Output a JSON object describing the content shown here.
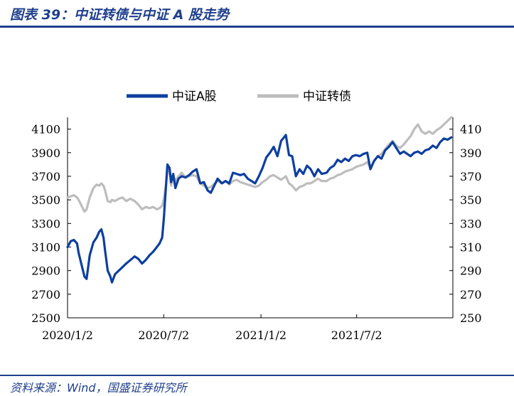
{
  "figure": {
    "title": "图表 39：中证转债与中证 A 股走势",
    "source": "资料来源：Wind，国盛证券研究所"
  },
  "colors": {
    "series_a": "#0d3fa0",
    "series_b": "#bdbdbd",
    "text_blue": "#1f3f8c"
  },
  "chart_data": {
    "type": "line",
    "title": "",
    "xlabel": "",
    "ylabel": "",
    "legend_position": "top",
    "grid": false,
    "x_range": [
      "2020-01-02",
      "2021-12-31"
    ],
    "x_ticks": [
      "2020/1/2",
      "2020/7/2",
      "2021/1/2",
      "2021/7/2"
    ],
    "y_left": {
      "range": [
        2500,
        4200
      ],
      "ticks": [
        "2500",
        "2700",
        "2900",
        "3100",
        "3300",
        "3500",
        "3700",
        "3900",
        "4100"
      ]
    },
    "y_right": {
      "range": [
        250,
        420
      ],
      "ticks": [
        "250",
        "270",
        "290",
        "310",
        "330",
        "350",
        "370",
        "390",
        "410"
      ]
    },
    "series": [
      {
        "name": "中证A股",
        "axis": "left",
        "points": [
          [
            "2020-01-02",
            3100
          ],
          [
            "2020-01-08",
            3150
          ],
          [
            "2020-01-14",
            3160
          ],
          [
            "2020-01-20",
            3130
          ],
          [
            "2020-01-23",
            3050
          ],
          [
            "2020-02-03",
            2850
          ],
          [
            "2020-02-07",
            2830
          ],
          [
            "2020-02-13",
            3030
          ],
          [
            "2020-02-20",
            3140
          ],
          [
            "2020-02-26",
            3180
          ],
          [
            "2020-03-02",
            3230
          ],
          [
            "2020-03-06",
            3250
          ],
          [
            "2020-03-10",
            3180
          ],
          [
            "2020-03-13",
            3070
          ],
          [
            "2020-03-18",
            2900
          ],
          [
            "2020-03-23",
            2850
          ],
          [
            "2020-03-26",
            2800
          ],
          [
            "2020-04-01",
            2870
          ],
          [
            "2020-04-08",
            2900
          ],
          [
            "2020-04-15",
            2930
          ],
          [
            "2020-04-22",
            2960
          ],
          [
            "2020-04-30",
            2990
          ],
          [
            "2020-05-08",
            3020
          ],
          [
            "2020-05-15",
            3000
          ],
          [
            "2020-05-22",
            2960
          ],
          [
            "2020-05-29",
            2990
          ],
          [
            "2020-06-05",
            3030
          ],
          [
            "2020-06-12",
            3060
          ],
          [
            "2020-06-19",
            3100
          ],
          [
            "2020-06-24",
            3130
          ],
          [
            "2020-06-29",
            3180
          ],
          [
            "2020-07-02",
            3330
          ],
          [
            "2020-07-06",
            3600
          ],
          [
            "2020-07-09",
            3800
          ],
          [
            "2020-07-13",
            3770
          ],
          [
            "2020-07-16",
            3650
          ],
          [
            "2020-07-20",
            3720
          ],
          [
            "2020-07-24",
            3600
          ],
          [
            "2020-07-30",
            3680
          ],
          [
            "2020-08-05",
            3700
          ],
          [
            "2020-08-12",
            3690
          ],
          [
            "2020-08-19",
            3710
          ],
          [
            "2020-08-26",
            3740
          ],
          [
            "2020-09-02",
            3760
          ],
          [
            "2020-09-09",
            3640
          ],
          [
            "2020-09-16",
            3650
          ],
          [
            "2020-09-23",
            3580
          ],
          [
            "2020-09-29",
            3560
          ],
          [
            "2020-10-12",
            3680
          ],
          [
            "2020-10-20",
            3640
          ],
          [
            "2020-10-27",
            3660
          ],
          [
            "2020-11-03",
            3640
          ],
          [
            "2020-11-10",
            3730
          ],
          [
            "2020-11-17",
            3720
          ],
          [
            "2020-11-24",
            3710
          ],
          [
            "2020-12-01",
            3720
          ],
          [
            "2020-12-08",
            3680
          ],
          [
            "2020-12-15",
            3660
          ],
          [
            "2020-12-22",
            3640
          ],
          [
            "2020-12-29",
            3700
          ],
          [
            "2021-01-05",
            3770
          ],
          [
            "2021-01-12",
            3860
          ],
          [
            "2021-01-19",
            3900
          ],
          [
            "2021-01-26",
            3950
          ],
          [
            "2021-02-02",
            3870
          ],
          [
            "2021-02-09",
            4000
          ],
          [
            "2021-02-18",
            4050
          ],
          [
            "2021-02-24",
            3880
          ],
          [
            "2021-03-02",
            3870
          ],
          [
            "2021-03-09",
            3700
          ],
          [
            "2021-03-16",
            3760
          ],
          [
            "2021-03-23",
            3720
          ],
          [
            "2021-03-30",
            3790
          ],
          [
            "2021-04-06",
            3760
          ],
          [
            "2021-04-13",
            3700
          ],
          [
            "2021-04-20",
            3760
          ],
          [
            "2021-04-27",
            3720
          ],
          [
            "2021-05-06",
            3730
          ],
          [
            "2021-05-13",
            3770
          ],
          [
            "2021-05-20",
            3790
          ],
          [
            "2021-05-27",
            3840
          ],
          [
            "2021-06-03",
            3820
          ],
          [
            "2021-06-10",
            3850
          ],
          [
            "2021-06-17",
            3830
          ],
          [
            "2021-06-24",
            3870
          ],
          [
            "2021-07-01",
            3880
          ],
          [
            "2021-07-08",
            3870
          ],
          [
            "2021-07-15",
            3890
          ],
          [
            "2021-07-22",
            3900
          ],
          [
            "2021-07-28",
            3760
          ],
          [
            "2021-08-04",
            3830
          ],
          [
            "2021-08-11",
            3870
          ],
          [
            "2021-08-18",
            3850
          ],
          [
            "2021-08-25",
            3920
          ],
          [
            "2021-09-01",
            3950
          ],
          [
            "2021-09-08",
            3990
          ],
          [
            "2021-09-15",
            3940
          ],
          [
            "2021-09-22",
            3890
          ],
          [
            "2021-09-29",
            3910
          ],
          [
            "2021-10-12",
            3870
          ],
          [
            "2021-10-19",
            3900
          ],
          [
            "2021-10-26",
            3910
          ],
          [
            "2021-11-02",
            3890
          ],
          [
            "2021-11-09",
            3920
          ],
          [
            "2021-11-16",
            3930
          ],
          [
            "2021-11-23",
            3960
          ],
          [
            "2021-11-30",
            3940
          ],
          [
            "2021-12-07",
            3990
          ],
          [
            "2021-12-14",
            4020
          ],
          [
            "2021-12-21",
            4010
          ],
          [
            "2021-12-28",
            4030
          ]
        ]
      },
      {
        "name": "中证转债",
        "axis": "right",
        "points": [
          [
            "2020-01-02",
            352
          ],
          [
            "2020-01-08",
            353
          ],
          [
            "2020-01-14",
            354
          ],
          [
            "2020-01-20",
            352
          ],
          [
            "2020-01-23",
            350
          ],
          [
            "2020-02-03",
            340
          ],
          [
            "2020-02-07",
            342
          ],
          [
            "2020-02-13",
            352
          ],
          [
            "2020-02-20",
            360
          ],
          [
            "2020-02-26",
            363
          ],
          [
            "2020-03-02",
            362
          ],
          [
            "2020-03-06",
            364
          ],
          [
            "2020-03-10",
            362
          ],
          [
            "2020-03-13",
            358
          ],
          [
            "2020-03-18",
            349
          ],
          [
            "2020-03-23",
            348
          ],
          [
            "2020-03-26",
            350
          ],
          [
            "2020-04-01",
            349
          ],
          [
            "2020-04-08",
            351
          ],
          [
            "2020-04-15",
            352
          ],
          [
            "2020-04-22",
            349
          ],
          [
            "2020-04-30",
            351
          ],
          [
            "2020-05-08",
            349
          ],
          [
            "2020-05-15",
            346
          ],
          [
            "2020-05-22",
            342
          ],
          [
            "2020-05-29",
            344
          ],
          [
            "2020-06-05",
            343
          ],
          [
            "2020-06-12",
            344
          ],
          [
            "2020-06-19",
            342
          ],
          [
            "2020-06-24",
            343
          ],
          [
            "2020-06-29",
            345
          ],
          [
            "2020-07-02",
            350
          ],
          [
            "2020-07-06",
            362
          ],
          [
            "2020-07-09",
            376
          ],
          [
            "2020-07-13",
            373
          ],
          [
            "2020-07-16",
            362
          ],
          [
            "2020-07-20",
            370
          ],
          [
            "2020-07-24",
            366
          ],
          [
            "2020-07-30",
            370
          ],
          [
            "2020-08-05",
            373
          ],
          [
            "2020-08-12",
            369
          ],
          [
            "2020-08-19",
            370
          ],
          [
            "2020-08-26",
            371
          ],
          [
            "2020-09-02",
            370
          ],
          [
            "2020-09-09",
            364
          ],
          [
            "2020-09-16",
            362
          ],
          [
            "2020-09-23",
            360
          ],
          [
            "2020-09-29",
            361
          ],
          [
            "2020-10-12",
            366
          ],
          [
            "2020-10-20",
            364
          ],
          [
            "2020-10-27",
            366
          ],
          [
            "2020-11-03",
            363
          ],
          [
            "2020-11-10",
            366
          ],
          [
            "2020-11-17",
            367
          ],
          [
            "2020-11-24",
            365
          ],
          [
            "2020-12-01",
            364
          ],
          [
            "2020-12-08",
            363
          ],
          [
            "2020-12-15",
            362
          ],
          [
            "2020-12-22",
            361
          ],
          [
            "2020-12-29",
            362
          ],
          [
            "2021-01-05",
            365
          ],
          [
            "2021-01-12",
            367
          ],
          [
            "2021-01-19",
            370
          ],
          [
            "2021-01-26",
            371
          ],
          [
            "2021-02-02",
            369
          ],
          [
            "2021-02-09",
            367
          ],
          [
            "2021-02-18",
            370
          ],
          [
            "2021-02-24",
            364
          ],
          [
            "2021-03-02",
            362
          ],
          [
            "2021-03-09",
            358
          ],
          [
            "2021-03-16",
            361
          ],
          [
            "2021-03-23",
            362
          ],
          [
            "2021-03-30",
            364
          ],
          [
            "2021-04-06",
            364
          ],
          [
            "2021-04-13",
            366
          ],
          [
            "2021-04-20",
            368
          ],
          [
            "2021-04-27",
            366
          ],
          [
            "2021-05-06",
            366
          ],
          [
            "2021-05-13",
            368
          ],
          [
            "2021-05-20",
            369
          ],
          [
            "2021-05-27",
            371
          ],
          [
            "2021-06-03",
            372
          ],
          [
            "2021-06-10",
            374
          ],
          [
            "2021-06-17",
            375
          ],
          [
            "2021-06-24",
            376
          ],
          [
            "2021-07-01",
            378
          ],
          [
            "2021-07-08",
            379
          ],
          [
            "2021-07-15",
            380
          ],
          [
            "2021-07-22",
            382
          ],
          [
            "2021-07-28",
            377
          ],
          [
            "2021-08-04",
            383
          ],
          [
            "2021-08-11",
            387
          ],
          [
            "2021-08-18",
            389
          ],
          [
            "2021-08-25",
            393
          ],
          [
            "2021-09-01",
            397
          ],
          [
            "2021-09-08",
            400
          ],
          [
            "2021-09-15",
            396
          ],
          [
            "2021-09-22",
            394
          ],
          [
            "2021-09-29",
            397
          ],
          [
            "2021-10-12",
            404
          ],
          [
            "2021-10-19",
            410
          ],
          [
            "2021-10-26",
            414
          ],
          [
            "2021-11-02",
            408
          ],
          [
            "2021-11-09",
            406
          ],
          [
            "2021-11-16",
            408
          ],
          [
            "2021-11-23",
            406
          ],
          [
            "2021-11-30",
            409
          ],
          [
            "2021-12-07",
            411
          ],
          [
            "2021-12-14",
            414
          ],
          [
            "2021-12-21",
            417
          ],
          [
            "2021-12-28",
            420
          ]
        ]
      }
    ]
  }
}
